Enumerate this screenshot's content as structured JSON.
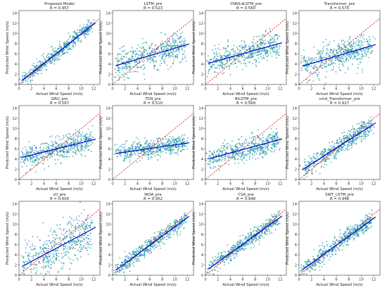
{
  "chart_data": {
    "type": "scatter",
    "layout": "3x4 grid of subplots",
    "xlabel": "Actual Wind Speed (m/s)",
    "ylabel": "Predicted Wind Speed (m/s)",
    "x_ticks": [
      "0",
      "2",
      "4",
      "6",
      "8",
      "10",
      "12"
    ],
    "y_ticks": [
      "0",
      "2",
      "4",
      "6",
      "8",
      "10",
      "12",
      "14"
    ],
    "xlim": [
      0,
      13
    ],
    "ylim": [
      0,
      14.5
    ],
    "grid": false,
    "reference_line": {
      "style": "red dashed",
      "slope": 1,
      "intercept": 0
    },
    "colors": {
      "points": "#2a86bf",
      "points_dense": "#2aa89a",
      "fit_line": "#0000cc",
      "reference_line": "#e41a1c"
    },
    "panels": [
      {
        "title": "Proposed Model",
        "r_label": "R = 0.957",
        "fit": {
          "slope": 0.96,
          "intercept": 0.3
        },
        "spread": 0.75
      },
      {
        "title": "LSTM_pre",
        "r_label": "R = 0.523",
        "fit": {
          "slope": 0.36,
          "intercept": 3.5
        },
        "spread": 1.4
      },
      {
        "title": "CNN1dLSTM_pre",
        "r_label": "R = 0.560",
        "fit": {
          "slope": 0.34,
          "intercept": 4.0
        },
        "spread": 1.3
      },
      {
        "title": "Transformer_pre",
        "r_label": "R = 0.570",
        "fit": {
          "slope": 0.36,
          "intercept": 3.4
        },
        "spread": 1.35
      },
      {
        "title": "GRU_pre",
        "r_label": "R = 0.567",
        "fit": {
          "slope": 0.3,
          "intercept": 4.2
        },
        "spread": 1.1
      },
      {
        "title": "TCN_pre",
        "r_label": "R = 0.510",
        "fit": {
          "slope": 0.18,
          "intercept": 5.0
        },
        "spread": 0.9
      },
      {
        "title": "BiLSTM_pre",
        "r_label": "R = 0.569",
        "fit": {
          "slope": 0.33,
          "intercept": 3.9
        },
        "spread": 1.1
      },
      {
        "title": "vmd_Transformer_pre",
        "r_label": "R = 0.927",
        "fit": {
          "slope": 0.78,
          "intercept": 1.5
        },
        "spread": 0.9
      },
      {
        "title": "stl_pre",
        "r_label": "R = 0.600",
        "fit": {
          "slope": 0.65,
          "intercept": 1.4
        },
        "spread": 2.3
      },
      {
        "title": "WOA_pre",
        "r_label": "R = 0.952",
        "fit": {
          "slope": 0.9,
          "intercept": 0.5
        },
        "spread": 0.75
      },
      {
        "title": "CSA_pre",
        "r_label": "R = 0.948",
        "fit": {
          "slope": 0.88,
          "intercept": 0.8
        },
        "spread": 0.75
      },
      {
        "title": "SWT_LSTM_pre",
        "r_label": "R = 0.948",
        "fit": {
          "slope": 0.88,
          "intercept": 0.6
        },
        "spread": 0.8
      }
    ]
  }
}
